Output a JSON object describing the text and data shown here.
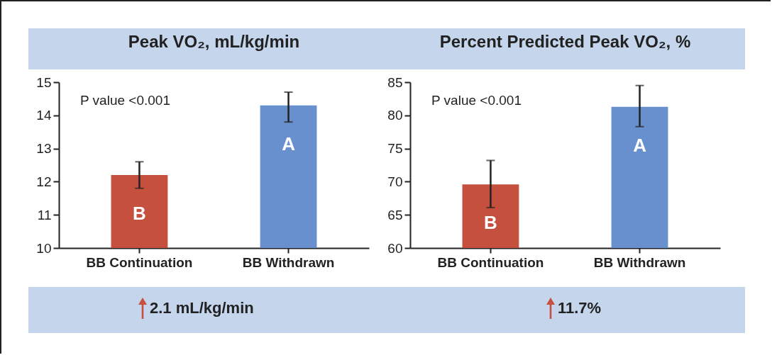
{
  "chart_data": [
    {
      "type": "bar",
      "title": "Peak VO₂, mL/kg/min",
      "categories": [
        "BB Continuation",
        "BB Withdrawn"
      ],
      "values": [
        12.2,
        14.3
      ],
      "colors": [
        "#c5503e",
        "#6890cf"
      ],
      "errors": [
        [
          11.8,
          12.6
        ],
        [
          13.8,
          14.7
        ]
      ],
      "ylim": [
        10,
        15
      ],
      "yticks": [
        10,
        11,
        12,
        13,
        14,
        15
      ],
      "grid": false,
      "annotations": [
        "P value <0.001",
        "B",
        "A",
        "2.1 mL/kg/min"
      ]
    },
    {
      "type": "bar",
      "title": "Percent Predicted Peak VO₂, %",
      "categories": [
        "BB Continuation",
        "BB Withdrawn"
      ],
      "values": [
        69.6,
        81.3
      ],
      "colors": [
        "#c5503e",
        "#6890cf"
      ],
      "errors": [
        [
          66.1,
          73.2
        ],
        [
          78.3,
          84.5
        ]
      ],
      "ylim": [
        60,
        85
      ],
      "yticks": [
        60,
        65,
        70,
        75,
        80,
        85
      ],
      "grid": false,
      "annotations": [
        "P value <0.001",
        "B",
        "A",
        "11.7%"
      ]
    }
  ]
}
